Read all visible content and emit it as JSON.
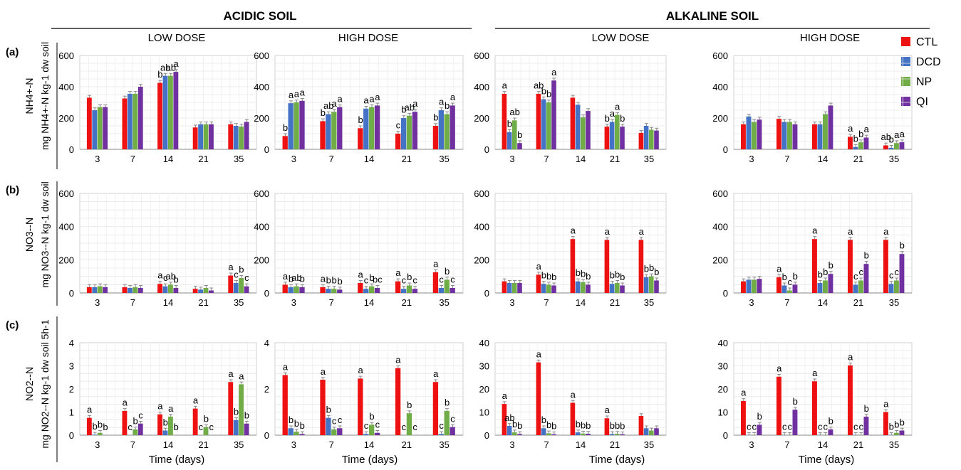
{
  "soil_titles": [
    "ACIDIC SOIL",
    "ALKALINE SOIL"
  ],
  "dose_titles": [
    "LOW DOSE",
    "HIGH DOSE",
    "LOW DOSE",
    "HIGH DOSE"
  ],
  "row_labels": [
    "(a)",
    "(b)",
    "(c)"
  ],
  "row_ylabels": [
    {
      "main": "NH4+-N",
      "unit": "mg NH4+-N kg-1 dw soil"
    },
    {
      "main": "NO3--N",
      "unit": "mg NO3--N kg-1 dw soil"
    },
    {
      "main": "NO2--N",
      "unit": "mg NO2--N kg-1 dw soil 5h-1"
    }
  ],
  "xlabel": "Time (days)",
  "legend": [
    {
      "name": "CTL",
      "color": "#ee1111"
    },
    {
      "name": "DCD",
      "color": "#4472c4"
    },
    {
      "name": "NP",
      "color": "#70ad47"
    },
    {
      "name": "QI",
      "color": "#7030a0"
    }
  ],
  "chart_data": [
    {
      "type": "bar",
      "row": 0,
      "col": 0,
      "title": "LOW DOSE",
      "categories": [
        "3",
        "7",
        "14",
        "21",
        "35"
      ],
      "ylim": [
        0,
        600
      ],
      "yticks": [
        0,
        200,
        400,
        600
      ],
      "series": [
        {
          "name": "CTL",
          "values": [
            330,
            325,
            425,
            140,
            160
          ]
        },
        {
          "name": "DCD",
          "values": [
            250,
            355,
            470,
            160,
            150
          ]
        },
        {
          "name": "NP",
          "values": [
            270,
            355,
            470,
            160,
            145
          ]
        },
        {
          "name": "QI",
          "values": [
            270,
            400,
            495,
            160,
            175
          ]
        }
      ],
      "labels": [
        [
          "",
          "",
          "",
          "",
          ""
        ],
        [
          "",
          "",
          "",
          "",
          ""
        ],
        [
          "b",
          "ab",
          "ab",
          "a",
          ""
        ],
        [
          "",
          "",
          "",
          "",
          ""
        ],
        [
          "",
          "",
          "",
          "",
          ""
        ]
      ]
    },
    {
      "type": "bar",
      "row": 0,
      "col": 1,
      "title": "HIGH DOSE",
      "categories": [
        "3",
        "7",
        "14",
        "21",
        "35"
      ],
      "ylim": [
        0,
        600
      ],
      "yticks": [
        0,
        200,
        400,
        600
      ],
      "series": [
        {
          "name": "CTL",
          "values": [
            85,
            180,
            135,
            100,
            150
          ]
        },
        {
          "name": "DCD",
          "values": [
            295,
            225,
            260,
            200,
            250
          ]
        },
        {
          "name": "NP",
          "values": [
            300,
            240,
            270,
            215,
            225
          ]
        },
        {
          "name": "QI",
          "values": [
            310,
            270,
            280,
            240,
            280
          ]
        }
      ],
      "labels": [
        [
          "b",
          "a",
          "a",
          "a"
        ],
        [
          "b",
          "ab",
          "a",
          "a"
        ],
        [
          "b",
          "a",
          "a",
          "a"
        ],
        [
          "c",
          "b",
          "ab",
          "a"
        ],
        [
          "b",
          "a",
          "b",
          "a"
        ]
      ]
    },
    {
      "type": "bar",
      "row": 0,
      "col": 2,
      "title": "LOW DOSE",
      "categories": [
        "3",
        "7",
        "14",
        "21",
        "35"
      ],
      "ylim": [
        0,
        600
      ],
      "yticks": [
        0,
        200,
        400,
        600
      ],
      "series": [
        {
          "name": "CTL",
          "values": [
            355,
            355,
            330,
            145,
            105
          ]
        },
        {
          "name": "DCD",
          "values": [
            110,
            320,
            285,
            175,
            150
          ]
        },
        {
          "name": "NP",
          "values": [
            185,
            300,
            205,
            220,
            125
          ]
        },
        {
          "name": "QI",
          "values": [
            40,
            440,
            245,
            145,
            120
          ]
        }
      ],
      "labels": [
        [
          "a",
          "b",
          "ab",
          "b"
        ],
        [
          "ab",
          "b",
          "b",
          "a"
        ],
        [
          "",
          "",
          "",
          ""
        ],
        [
          "b",
          "a",
          "a",
          "b"
        ],
        [
          "",
          "",
          "",
          ""
        ]
      ]
    },
    {
      "type": "bar",
      "row": 0,
      "col": 3,
      "title": "HIGH DOSE",
      "categories": [
        "3",
        "7",
        "14",
        "21",
        "35"
      ],
      "ylim": [
        0,
        600
      ],
      "yticks": [
        0,
        200,
        400,
        600
      ],
      "series": [
        {
          "name": "CTL",
          "values": [
            160,
            195,
            160,
            80,
            25
          ]
        },
        {
          "name": "DCD",
          "values": [
            210,
            175,
            160,
            15,
            10
          ]
        },
        {
          "name": "NP",
          "values": [
            175,
            175,
            225,
            45,
            40
          ]
        },
        {
          "name": "QI",
          "values": [
            190,
            160,
            280,
            75,
            45
          ]
        }
      ],
      "labels": [
        [
          "",
          "",
          "",
          ""
        ],
        [
          "",
          "",
          "",
          ""
        ],
        [
          "",
          "",
          "",
          ""
        ],
        [
          "a",
          "b",
          "b",
          "a"
        ],
        [
          "ab",
          "b",
          "a",
          "a"
        ]
      ]
    },
    {
      "type": "bar",
      "row": 1,
      "col": 0,
      "title": "",
      "categories": [
        "3",
        "7",
        "14",
        "21",
        "35"
      ],
      "ylim": [
        0,
        600
      ],
      "yticks": [
        0,
        200,
        400,
        600
      ],
      "series": [
        {
          "name": "CTL",
          "values": [
            35,
            35,
            55,
            25,
            105
          ]
        },
        {
          "name": "DCD",
          "values": [
            35,
            30,
            40,
            20,
            60
          ]
        },
        {
          "name": "NP",
          "values": [
            40,
            35,
            50,
            30,
            90
          ]
        },
        {
          "name": "QI",
          "values": [
            35,
            30,
            30,
            15,
            40
          ]
        }
      ],
      "labels": [
        [
          "",
          "",
          "",
          ""
        ],
        [
          "",
          "",
          "",
          ""
        ],
        [
          "a",
          "c",
          "ab",
          "b"
        ],
        [
          "",
          "",
          "",
          ""
        ],
        [
          "a",
          "c",
          "b",
          "c"
        ]
      ]
    },
    {
      "type": "bar",
      "row": 1,
      "col": 1,
      "title": "",
      "categories": [
        "3",
        "7",
        "14",
        "21",
        "35"
      ],
      "ylim": [
        0,
        600
      ],
      "yticks": [
        0,
        200,
        400,
        600
      ],
      "series": [
        {
          "name": "CTL",
          "values": [
            50,
            35,
            60,
            70,
            125
          ]
        },
        {
          "name": "DCD",
          "values": [
            35,
            25,
            25,
            25,
            30
          ]
        },
        {
          "name": "NP",
          "values": [
            40,
            25,
            40,
            45,
            80
          ]
        },
        {
          "name": "QI",
          "values": [
            35,
            20,
            30,
            25,
            30
          ]
        }
      ],
      "labels": [
        [
          "a",
          "b",
          "ab",
          "b"
        ],
        [
          "a",
          "b",
          "b",
          "b"
        ],
        [
          "a",
          "c",
          "b",
          "bc"
        ],
        [
          "a",
          "c",
          "b",
          "c"
        ],
        [
          "a",
          "c",
          "b",
          "c"
        ]
      ]
    },
    {
      "type": "bar",
      "row": 1,
      "col": 2,
      "title": "",
      "categories": [
        "3",
        "7",
        "14",
        "21",
        "35"
      ],
      "ylim": [
        0,
        600
      ],
      "yticks": [
        0,
        200,
        400,
        600
      ],
      "series": [
        {
          "name": "CTL",
          "values": [
            70,
            110,
            325,
            320,
            320
          ]
        },
        {
          "name": "DCD",
          "values": [
            60,
            55,
            70,
            55,
            95
          ]
        },
        {
          "name": "NP",
          "values": [
            60,
            50,
            65,
            60,
            100
          ]
        },
        {
          "name": "QI",
          "values": [
            60,
            45,
            50,
            45,
            75
          ]
        }
      ],
      "labels": [
        [
          "",
          "",
          "",
          ""
        ],
        [
          "a",
          "b",
          "b",
          "b"
        ],
        [
          "a",
          "b",
          "b",
          "b"
        ],
        [
          "a",
          "b",
          "b",
          "b"
        ],
        [
          "a",
          "b",
          "b",
          "b"
        ]
      ]
    },
    {
      "type": "bar",
      "row": 1,
      "col": 3,
      "title": "",
      "categories": [
        "3",
        "7",
        "14",
        "21",
        "35"
      ],
      "ylim": [
        0,
        600
      ],
      "yticks": [
        0,
        200,
        400,
        600
      ],
      "series": [
        {
          "name": "CTL",
          "values": [
            70,
            95,
            325,
            320,
            320
          ]
        },
        {
          "name": "DCD",
          "values": [
            80,
            45,
            60,
            50,
            55
          ]
        },
        {
          "name": "NP",
          "values": [
            80,
            15,
            75,
            75,
            75
          ]
        },
        {
          "name": "QI",
          "values": [
            85,
            50,
            115,
            175,
            235
          ]
        }
      ],
      "labels": [
        [
          "",
          "",
          "",
          ""
        ],
        [
          "a",
          "b",
          "c",
          "b"
        ],
        [
          "a",
          "b",
          "b",
          "b"
        ],
        [
          "a",
          "c",
          "c",
          "b"
        ],
        [
          "a",
          "c",
          "c",
          "b"
        ]
      ]
    },
    {
      "type": "bar",
      "row": 2,
      "col": 0,
      "title": "",
      "categories": [
        "3",
        "7",
        "14",
        "21",
        "35"
      ],
      "ylim": [
        0,
        4
      ],
      "yticks": [
        0,
        1,
        2,
        3,
        4
      ],
      "series": [
        {
          "name": "CTL",
          "values": [
            0.75,
            1.05,
            0.9,
            1.15,
            2.3
          ]
        },
        {
          "name": "DCD",
          "values": [
            0.02,
            0.0,
            0.2,
            0.0,
            0.65
          ]
        },
        {
          "name": "NP",
          "values": [
            0.1,
            0.25,
            0.8,
            0.35,
            2.2
          ]
        },
        {
          "name": "QI",
          "values": [
            0.0,
            0.5,
            0.0,
            0.0,
            0.5
          ]
        }
      ],
      "labels": [
        [
          "a",
          "b",
          "b",
          "b"
        ],
        [
          "a",
          "c",
          "b",
          "c"
        ],
        [
          "a",
          "b",
          "a",
          "b"
        ],
        [
          "a",
          "c",
          "b",
          "c"
        ],
        [
          "a",
          "b",
          "a",
          "b"
        ]
      ]
    },
    {
      "type": "bar",
      "row": 2,
      "col": 1,
      "title": "",
      "categories": [
        "3",
        "7",
        "14",
        "21",
        "35"
      ],
      "ylim": [
        0,
        4
      ],
      "yticks": [
        0,
        2,
        4
      ],
      "series": [
        {
          "name": "CTL",
          "values": [
            2.6,
            2.4,
            2.45,
            2.9,
            2.3
          ]
        },
        {
          "name": "DCD",
          "values": [
            0.3,
            0.75,
            0.05,
            0.0,
            0.05
          ]
        },
        {
          "name": "NP",
          "values": [
            0.15,
            0.25,
            0.45,
            0.95,
            1.05
          ]
        },
        {
          "name": "QI",
          "values": [
            0.05,
            0.3,
            0.1,
            0.0,
            0.35
          ]
        }
      ],
      "labels": [
        [
          "a",
          "b",
          "b",
          "b"
        ],
        [
          "a",
          "b",
          "c",
          "c"
        ],
        [
          "a",
          "c",
          "b",
          "c"
        ],
        [
          "a",
          "c",
          "b",
          "c"
        ],
        [
          "a",
          "c",
          "b",
          "c"
        ]
      ]
    },
    {
      "type": "bar",
      "row": 2,
      "col": 2,
      "title": "",
      "categories": [
        "3",
        "7",
        "14",
        "21",
        "35"
      ],
      "ylim": [
        0,
        40
      ],
      "yticks": [
        0,
        10,
        20,
        30,
        40
      ],
      "series": [
        {
          "name": "CTL",
          "values": [
            13.5,
            31.5,
            14,
            7.3,
            8.3
          ]
        },
        {
          "name": "DCD",
          "values": [
            4,
            3,
            1.2,
            0.5,
            3
          ]
        },
        {
          "name": "NP",
          "values": [
            1.2,
            0.8,
            0.7,
            0.6,
            2
          ]
        },
        {
          "name": "QI",
          "values": [
            0.5,
            0.4,
            0.6,
            0.4,
            3
          ]
        }
      ],
      "labels": [
        [
          "a",
          "ab",
          "b",
          "b"
        ],
        [
          "a",
          "b",
          "b",
          "b"
        ],
        [
          "a",
          "b",
          "b",
          "b"
        ],
        [
          "a",
          "b",
          "b",
          "b"
        ],
        [
          "",
          "",
          "",
          ""
        ]
      ]
    },
    {
      "type": "bar",
      "row": 2,
      "col": 3,
      "title": "",
      "categories": [
        "3",
        "7",
        "14",
        "21",
        "35"
      ],
      "ylim": [
        0,
        40
      ],
      "yticks": [
        0,
        10,
        20,
        30,
        40
      ],
      "series": [
        {
          "name": "CTL",
          "values": [
            14.8,
            25.3,
            23.3,
            30.2,
            10
          ]
        },
        {
          "name": "DCD",
          "values": [
            0.1,
            0.1,
            0.1,
            0.1,
            0.1
          ]
        },
        {
          "name": "NP",
          "values": [
            0.1,
            0.1,
            0.1,
            0.1,
            1
          ]
        },
        {
          "name": "QI",
          "values": [
            4.5,
            11,
            2.5,
            8,
            2
          ]
        }
      ],
      "labels": [
        [
          "a",
          "c",
          "c",
          "b"
        ],
        [
          "a",
          "c",
          "c",
          "b"
        ],
        [
          "a",
          "c",
          "c",
          "b"
        ],
        [
          "a",
          "c",
          "c",
          "b"
        ],
        [
          "a",
          "b",
          "b",
          "b"
        ]
      ]
    }
  ]
}
